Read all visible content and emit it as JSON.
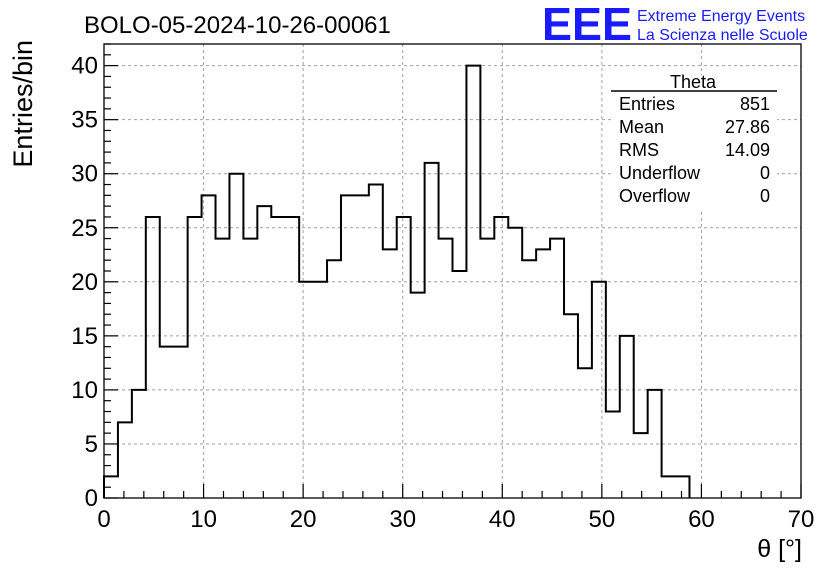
{
  "chart_data": {
    "type": "histogram",
    "title": "BOLO-05-2024-10-26-00061",
    "xlabel": "θ [°]",
    "ylabel": "Entries/bin",
    "xlim": [
      0,
      70
    ],
    "ylim": [
      0,
      42
    ],
    "xticks": [
      "0",
      "10",
      "20",
      "30",
      "40",
      "50",
      "60",
      "70"
    ],
    "yticks": [
      "0",
      "5",
      "10",
      "15",
      "20",
      "25",
      "30",
      "35",
      "40"
    ],
    "grid": true,
    "bin_width": 1.4,
    "bin_start": 0,
    "values": [
      2,
      7,
      10,
      26,
      14,
      14,
      26,
      28,
      24,
      30,
      24,
      27,
      26,
      26,
      20,
      20,
      22,
      28,
      28,
      29,
      23,
      26,
      19,
      31,
      24,
      21,
      40,
      24,
      26,
      25,
      22,
      23,
      24,
      17,
      12,
      20,
      8,
      15,
      6,
      10,
      2,
      2
    ],
    "line_color": "#000000"
  },
  "stats_box": {
    "title": "Theta",
    "rows": [
      {
        "label": "Entries",
        "value": "851"
      },
      {
        "label": "Mean",
        "value": "27.86"
      },
      {
        "label": "RMS",
        "value": "14.09"
      },
      {
        "label": "Underflow",
        "value": "0"
      },
      {
        "label": "Overflow",
        "value": "0"
      }
    ]
  },
  "logo": {
    "mark": "EEE",
    "line1": "Extreme Energy Events",
    "line2": "La Scienza nelle Scuole",
    "color": "#1a1aff"
  }
}
